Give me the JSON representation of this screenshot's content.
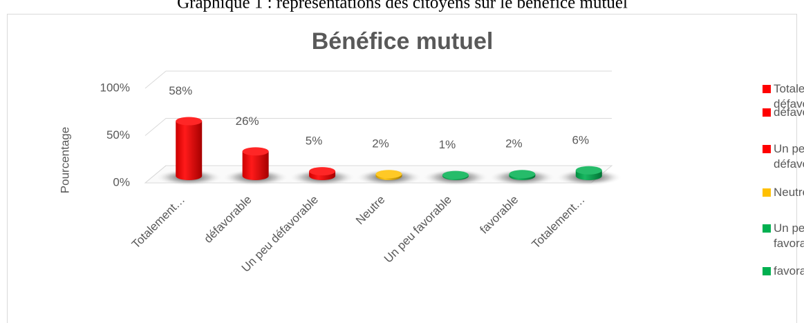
{
  "caption": "Graphique 1 : représentations des citoyens sur le bénéfice mutuel",
  "chart_data": {
    "type": "bar3d",
    "title": "Bénéfice mutuel",
    "y_label": "Pourcentage",
    "categories": [
      "Totalement…",
      "défavorable",
      "Un peu défavorable",
      "Neutre",
      "Un peu favorable",
      "favorable",
      "Totalement…"
    ],
    "values": [
      58,
      26,
      5,
      2,
      1,
      2,
      6
    ],
    "value_labels": [
      "58%",
      "26%",
      "5%",
      "2%",
      "1%",
      "2%",
      "6%"
    ],
    "colors": [
      "#ff0000",
      "#ff0000",
      "#ff0000",
      "#ffc000",
      "#00b050",
      "#00b050",
      "#00b050"
    ],
    "ylim": [
      0,
      100
    ],
    "yticks": [
      {
        "value": 0,
        "label": "0%"
      },
      {
        "value": 50,
        "label": "50%"
      },
      {
        "value": 100,
        "label": "100%"
      }
    ],
    "grid": true,
    "legend": [
      {
        "name": "Totalement défavorable",
        "color": "#ff0000"
      },
      {
        "name": "défavorable",
        "color": "#ff0000"
      },
      {
        "name": "Un peu défavorable",
        "color": "#ff0000"
      },
      {
        "name": "Neutre",
        "color": "#ffc000"
      },
      {
        "name": "Un peu favorable",
        "color": "#00b050"
      },
      {
        "name": "favorable",
        "color": "#00b050"
      }
    ]
  }
}
